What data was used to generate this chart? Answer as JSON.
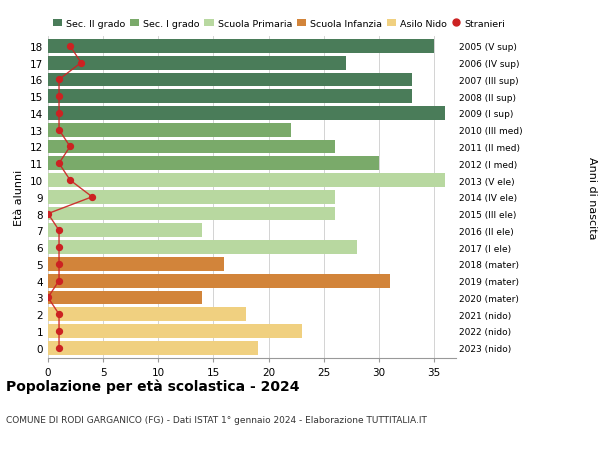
{
  "ages": [
    18,
    17,
    16,
    15,
    14,
    13,
    12,
    11,
    10,
    9,
    8,
    7,
    6,
    5,
    4,
    3,
    2,
    1,
    0
  ],
  "right_labels": [
    "2005 (V sup)",
    "2006 (IV sup)",
    "2007 (III sup)",
    "2008 (II sup)",
    "2009 (I sup)",
    "2010 (III med)",
    "2011 (II med)",
    "2012 (I med)",
    "2013 (V ele)",
    "2014 (IV ele)",
    "2015 (III ele)",
    "2016 (II ele)",
    "2017 (I ele)",
    "2018 (mater)",
    "2019 (mater)",
    "2020 (mater)",
    "2021 (nido)",
    "2022 (nido)",
    "2023 (nido)"
  ],
  "bar_values": [
    35,
    27,
    33,
    33,
    36,
    22,
    26,
    30,
    36,
    26,
    26,
    14,
    28,
    16,
    31,
    14,
    18,
    23,
    19
  ],
  "bar_colors": [
    "#4a7c59",
    "#4a7c59",
    "#4a7c59",
    "#4a7c59",
    "#4a7c59",
    "#7aaa6a",
    "#7aaa6a",
    "#7aaa6a",
    "#b8d8a0",
    "#b8d8a0",
    "#b8d8a0",
    "#b8d8a0",
    "#b8d8a0",
    "#d2843a",
    "#d2843a",
    "#d2843a",
    "#f0d080",
    "#f0d080",
    "#f0d080"
  ],
  "stranieri_values": [
    2,
    3,
    1,
    1,
    1,
    1,
    2,
    1,
    2,
    4,
    0,
    1,
    1,
    1,
    1,
    0,
    1,
    1,
    1
  ],
  "legend_labels": [
    "Sec. II grado",
    "Sec. I grado",
    "Scuola Primaria",
    "Scuola Infanzia",
    "Asilo Nido",
    "Stranieri"
  ],
  "legend_colors": [
    "#4a7c59",
    "#7aaa6a",
    "#b8d8a0",
    "#d2843a",
    "#f0d080",
    "#cc2222"
  ],
  "ylabel": "Età alunni",
  "right_ylabel": "Anni di nascita",
  "title": "Popolazione per età scolastica - 2024",
  "subtitle": "COMUNE DI RODI GARGANICO (FG) - Dati ISTAT 1° gennaio 2024 - Elaborazione TUTTITALIA.IT",
  "xlim": [
    0,
    37
  ],
  "xticks": [
    0,
    5,
    10,
    15,
    20,
    25,
    30,
    35
  ],
  "background_color": "#ffffff",
  "grid_color": "#cccccc"
}
